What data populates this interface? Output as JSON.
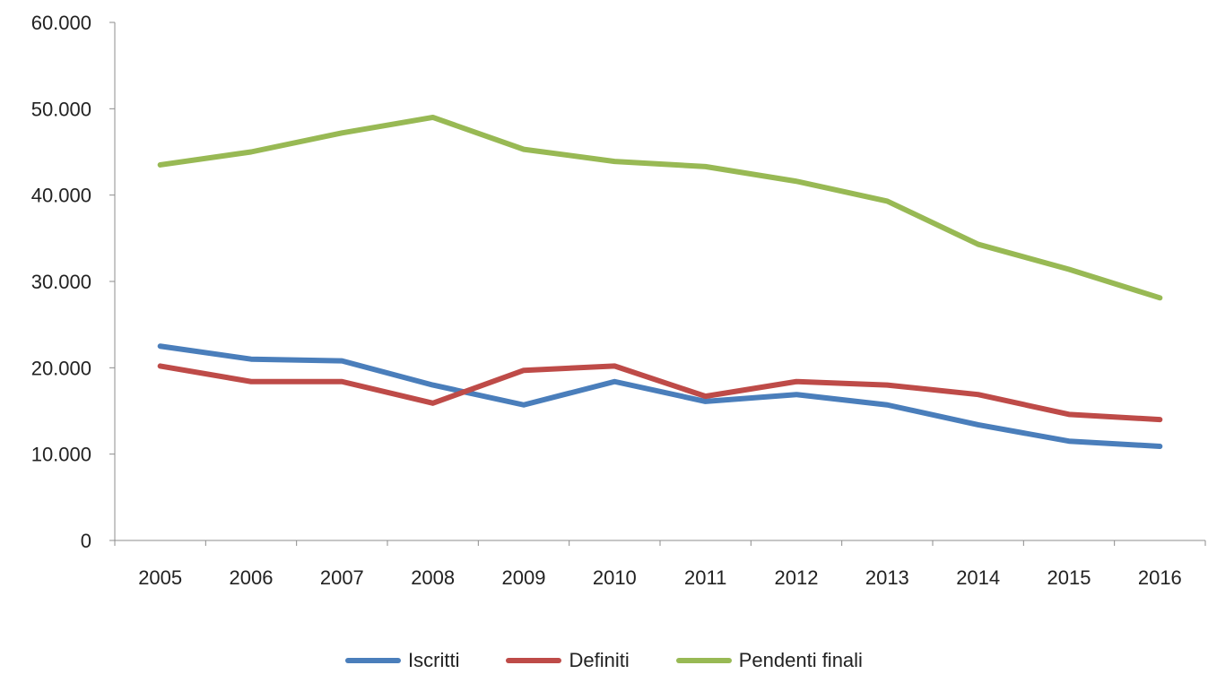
{
  "chart_data": {
    "type": "line",
    "title": "",
    "xlabel": "",
    "ylabel": "",
    "categories": [
      "2005",
      "2006",
      "2007",
      "2008",
      "2009",
      "2010",
      "2011",
      "2012",
      "2013",
      "2014",
      "2015",
      "2016"
    ],
    "ylim": [
      0,
      60000
    ],
    "y_ticks": [
      {
        "value": 0,
        "label": "0"
      },
      {
        "value": 10000,
        "label": "10.000"
      },
      {
        "value": 20000,
        "label": "20.000"
      },
      {
        "value": 30000,
        "label": "30.000"
      },
      {
        "value": 40000,
        "label": "40.000"
      },
      {
        "value": 50000,
        "label": "50.000"
      },
      {
        "value": 60000,
        "label": "60.000"
      }
    ],
    "grid": false,
    "legend_position": "bottom",
    "series": [
      {
        "name": "Iscritti",
        "color": "#4a7ebb",
        "values": [
          22500,
          21000,
          20800,
          18000,
          15700,
          18400,
          16100,
          16900,
          15700,
          13400,
          11500,
          10900
        ]
      },
      {
        "name": "Definiti",
        "color": "#be4b48",
        "values": [
          20200,
          18400,
          18400,
          15900,
          19700,
          20200,
          16700,
          18400,
          18000,
          16900,
          14600,
          14000
        ]
      },
      {
        "name": "Pendenti finali",
        "color": "#98b954",
        "values": [
          43500,
          45000,
          47200,
          49000,
          45300,
          43900,
          43300,
          41600,
          39300,
          34300,
          31400,
          28100
        ]
      }
    ]
  }
}
